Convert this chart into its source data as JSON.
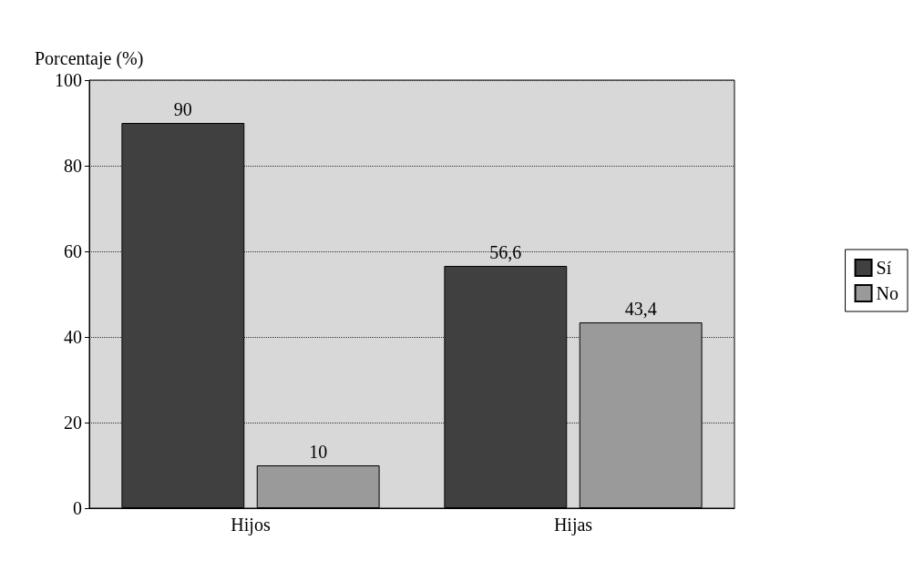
{
  "chart_data": {
    "type": "bar",
    "ylabel": "Porcentaje (%)",
    "categories": [
      "Hijos",
      "Hijas"
    ],
    "series": [
      {
        "name": "Sí",
        "color": "#404040",
        "values": [
          90,
          56.6
        ],
        "value_labels": [
          "90",
          "56,6"
        ]
      },
      {
        "name": "No",
        "color": "#9a9a9a",
        "values": [
          10,
          43.4
        ],
        "value_labels": [
          "10",
          "43,4"
        ]
      }
    ],
    "ylim": [
      0,
      100
    ],
    "yticks": [
      0,
      20,
      40,
      60,
      80,
      100
    ],
    "grid": "y",
    "legend": "right"
  }
}
